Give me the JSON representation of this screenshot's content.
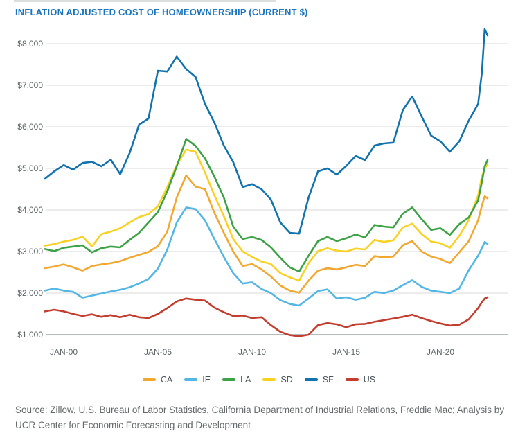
{
  "source": {
    "line1": "Source: Zillow, U.S. Bureau of Labor Statistics, California Department of Industrial Relations, Freddie Mac; Analysis by",
    "line2": "UCR Center for Economic Forecasting and Development"
  },
  "colors": {
    "title": "#1c75bc",
    "grid": "#d8dadb",
    "axis_line": "#9ea3a7",
    "axis_text": "#5f6469",
    "legend_text": "#47525b",
    "source_text": "#66696c"
  },
  "chart_data": {
    "type": "line",
    "title": "INFLATION ADJUSTED COST OF HOMEOWNERSHIP (CURRENT $)",
    "x_axis": {
      "ticks": [
        {
          "label": "JAN-00",
          "year": 2000
        },
        {
          "label": "JAN-05",
          "year": 2005
        },
        {
          "label": "JAN-10",
          "year": 2010
        },
        {
          "label": "JAN-15",
          "year": 2015
        },
        {
          "label": "JAN-20",
          "year": 2020
        }
      ],
      "range_years": [
        1999,
        2022.5
      ]
    },
    "y_axis": {
      "ticks": [
        {
          "label": "$1,000",
          "value": 1000
        },
        {
          "label": "$2,000",
          "value": 2000
        },
        {
          "label": "$3,000",
          "value": 3000
        },
        {
          "label": "$4,000",
          "value": 4000
        },
        {
          "label": "$5,000",
          "value": 5000
        },
        {
          "label": "$6,000",
          "value": 6000
        },
        {
          "label": "$7,000",
          "value": 7000
        },
        {
          "label": "$8,000",
          "value": 8000
        }
      ],
      "range": [
        1000,
        8400
      ]
    },
    "grid": true,
    "legend_position": "bottom",
    "legend_order": [
      "CA",
      "IE",
      "LA",
      "SD",
      "SF",
      "US"
    ],
    "draw_order": [
      "CA",
      "IE",
      "SD",
      "LA",
      "SF",
      "US"
    ],
    "x_years": [
      1999,
      1999.5,
      2000,
      2000.5,
      2001,
      2001.5,
      2002,
      2002.5,
      2003,
      2003.5,
      2004,
      2004.5,
      2005,
      2005.5,
      2006,
      2006.5,
      2007,
      2007.5,
      2008,
      2008.5,
      2009,
      2009.5,
      2010,
      2010.5,
      2011,
      2011.5,
      2012,
      2012.5,
      2013,
      2013.5,
      2014,
      2014.5,
      2015,
      2015.5,
      2016,
      2016.5,
      2017,
      2017.5,
      2018,
      2018.5,
      2019,
      2019.5,
      2020,
      2020.5,
      2021,
      2021.5,
      2022,
      2022.2,
      2022.35,
      2022.5
    ],
    "series": [
      {
        "name": "CA",
        "color": "#F2A72E",
        "values": [
          2600,
          2640,
          2690,
          2620,
          2540,
          2650,
          2690,
          2720,
          2770,
          2850,
          2920,
          2990,
          3130,
          3480,
          4300,
          4830,
          4560,
          4500,
          3930,
          3450,
          3000,
          2650,
          2700,
          2570,
          2400,
          2180,
          2060,
          2010,
          2300,
          2540,
          2600,
          2570,
          2620,
          2680,
          2650,
          2890,
          2860,
          2880,
          3150,
          3250,
          3000,
          2880,
          2820,
          2720,
          2980,
          3250,
          3750,
          4100,
          4330,
          4280
        ]
      },
      {
        "name": "IE",
        "color": "#54B6E4",
        "values": [
          2060,
          2110,
          2060,
          2030,
          1890,
          1940,
          1990,
          2040,
          2080,
          2140,
          2230,
          2340,
          2590,
          3050,
          3700,
          4060,
          4020,
          3750,
          3300,
          2870,
          2480,
          2230,
          2260,
          2100,
          2000,
          1830,
          1740,
          1700,
          1870,
          2050,
          2090,
          1870,
          1900,
          1840,
          1890,
          2030,
          2000,
          2060,
          2190,
          2310,
          2150,
          2060,
          2030,
          2000,
          2110,
          2550,
          2900,
          3080,
          3230,
          3180
        ]
      },
      {
        "name": "LA",
        "color": "#3DA145",
        "values": [
          3060,
          3010,
          3090,
          3120,
          3150,
          2980,
          3080,
          3120,
          3100,
          3280,
          3450,
          3700,
          3950,
          4450,
          5050,
          5710,
          5540,
          5240,
          4800,
          4300,
          3600,
          3300,
          3350,
          3280,
          3100,
          2850,
          2620,
          2520,
          2900,
          3250,
          3350,
          3250,
          3320,
          3410,
          3340,
          3640,
          3600,
          3580,
          3910,
          4060,
          3780,
          3520,
          3560,
          3400,
          3660,
          3820,
          4230,
          4670,
          5050,
          5200
        ]
      },
      {
        "name": "SD",
        "color": "#F8D122",
        "values": [
          3140,
          3180,
          3240,
          3280,
          3360,
          3120,
          3420,
          3480,
          3560,
          3700,
          3830,
          3900,
          4090,
          4550,
          5080,
          5450,
          5400,
          4900,
          4350,
          3850,
          3300,
          3000,
          2870,
          2760,
          2700,
          2480,
          2380,
          2300,
          2720,
          3010,
          3080,
          3020,
          3000,
          3070,
          3050,
          3280,
          3230,
          3270,
          3580,
          3670,
          3420,
          3240,
          3200,
          3090,
          3380,
          3750,
          4350,
          4800,
          5000,
          5100
        ]
      },
      {
        "name": "SF",
        "color": "#1272AE",
        "values": [
          4750,
          4930,
          5080,
          4970,
          5130,
          5160,
          5050,
          5210,
          4860,
          5370,
          6050,
          6200,
          7350,
          7330,
          7690,
          7390,
          7200,
          6550,
          6100,
          5550,
          5150,
          4550,
          4620,
          4500,
          4250,
          3700,
          3450,
          3430,
          4300,
          4930,
          5000,
          4850,
          5060,
          5300,
          5200,
          5550,
          5600,
          5620,
          6400,
          6730,
          6250,
          5790,
          5650,
          5400,
          5650,
          6150,
          6550,
          7300,
          8350,
          8200
        ]
      },
      {
        "name": "US",
        "color": "#C33D2E",
        "values": [
          1560,
          1600,
          1560,
          1500,
          1450,
          1490,
          1430,
          1470,
          1420,
          1480,
          1420,
          1400,
          1500,
          1640,
          1800,
          1870,
          1840,
          1820,
          1650,
          1540,
          1450,
          1460,
          1400,
          1420,
          1230,
          1070,
          990,
          960,
          1000,
          1230,
          1280,
          1250,
          1180,
          1250,
          1260,
          1310,
          1350,
          1390,
          1430,
          1480,
          1400,
          1330,
          1270,
          1220,
          1240,
          1370,
          1640,
          1780,
          1870,
          1900
        ]
      }
    ]
  }
}
